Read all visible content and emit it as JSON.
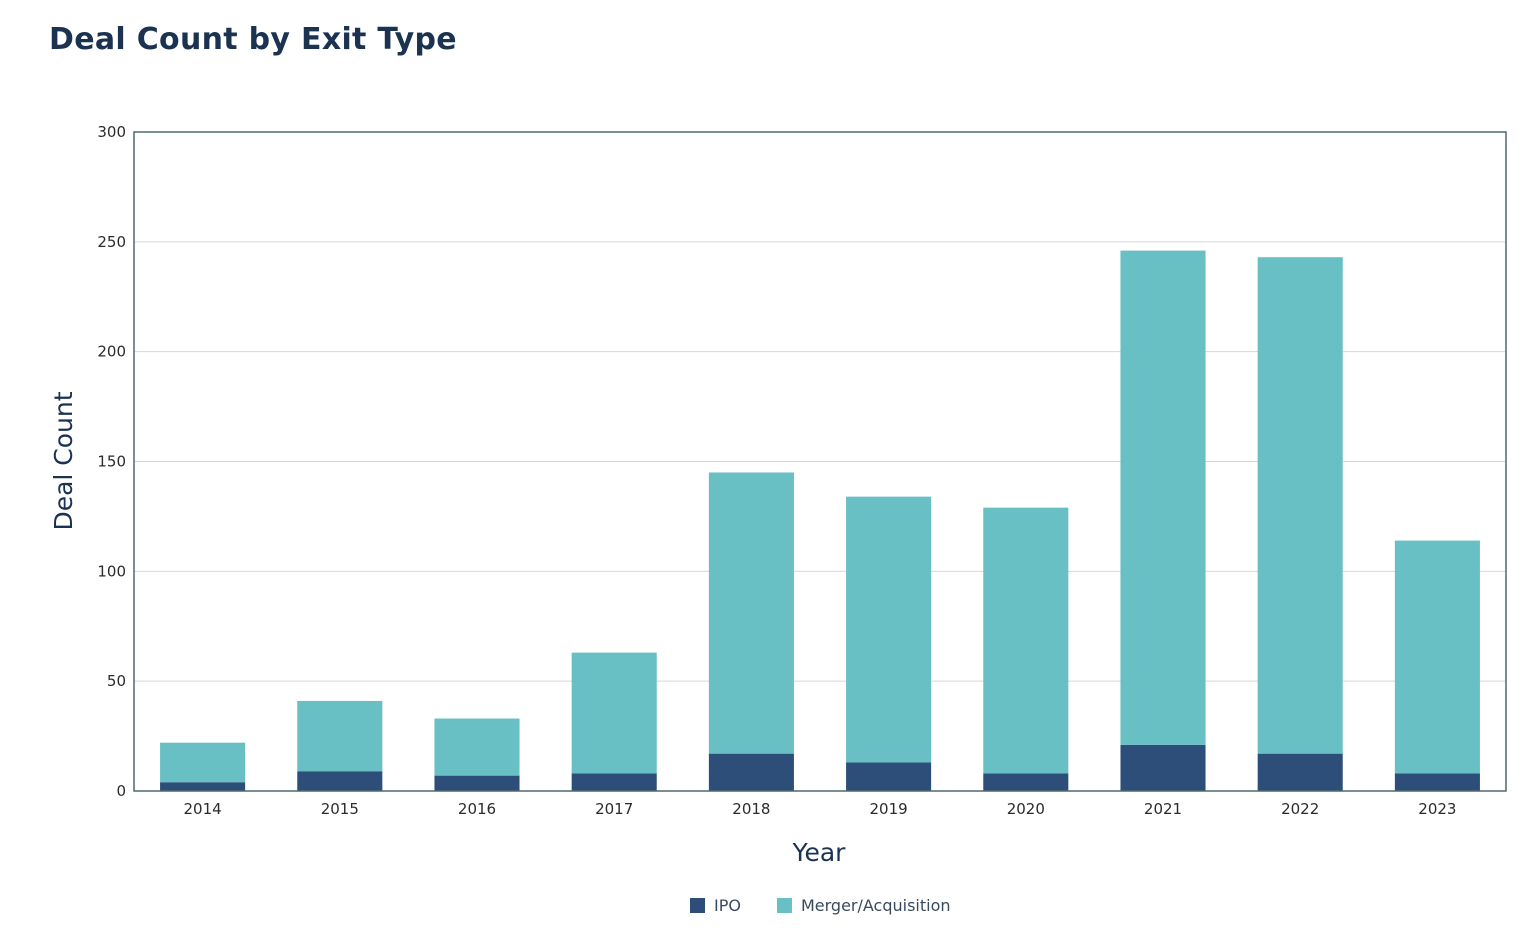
{
  "chart_data": {
    "type": "bar",
    "stacked": true,
    "title": "Deal Count by Exit Type",
    "xlabel": "Year",
    "ylabel": "Deal Count",
    "ylim": [
      0,
      300
    ],
    "yticks": [
      0,
      50,
      100,
      150,
      200,
      250,
      300
    ],
    "grid": true,
    "legend_position": "bottom",
    "categories": [
      "2014",
      "2015",
      "2016",
      "2017",
      "2018",
      "2019",
      "2020",
      "2021",
      "2022",
      "2023"
    ],
    "series": [
      {
        "name": "IPO",
        "color": "#2c4e79",
        "values": [
          4,
          9,
          7,
          8,
          17,
          13,
          8,
          21,
          17,
          8
        ]
      },
      {
        "name": "Merger/Acquisition",
        "color": "#68bfc4",
        "values": [
          18,
          32,
          26,
          55,
          128,
          121,
          121,
          225,
          226,
          106
        ]
      }
    ]
  }
}
